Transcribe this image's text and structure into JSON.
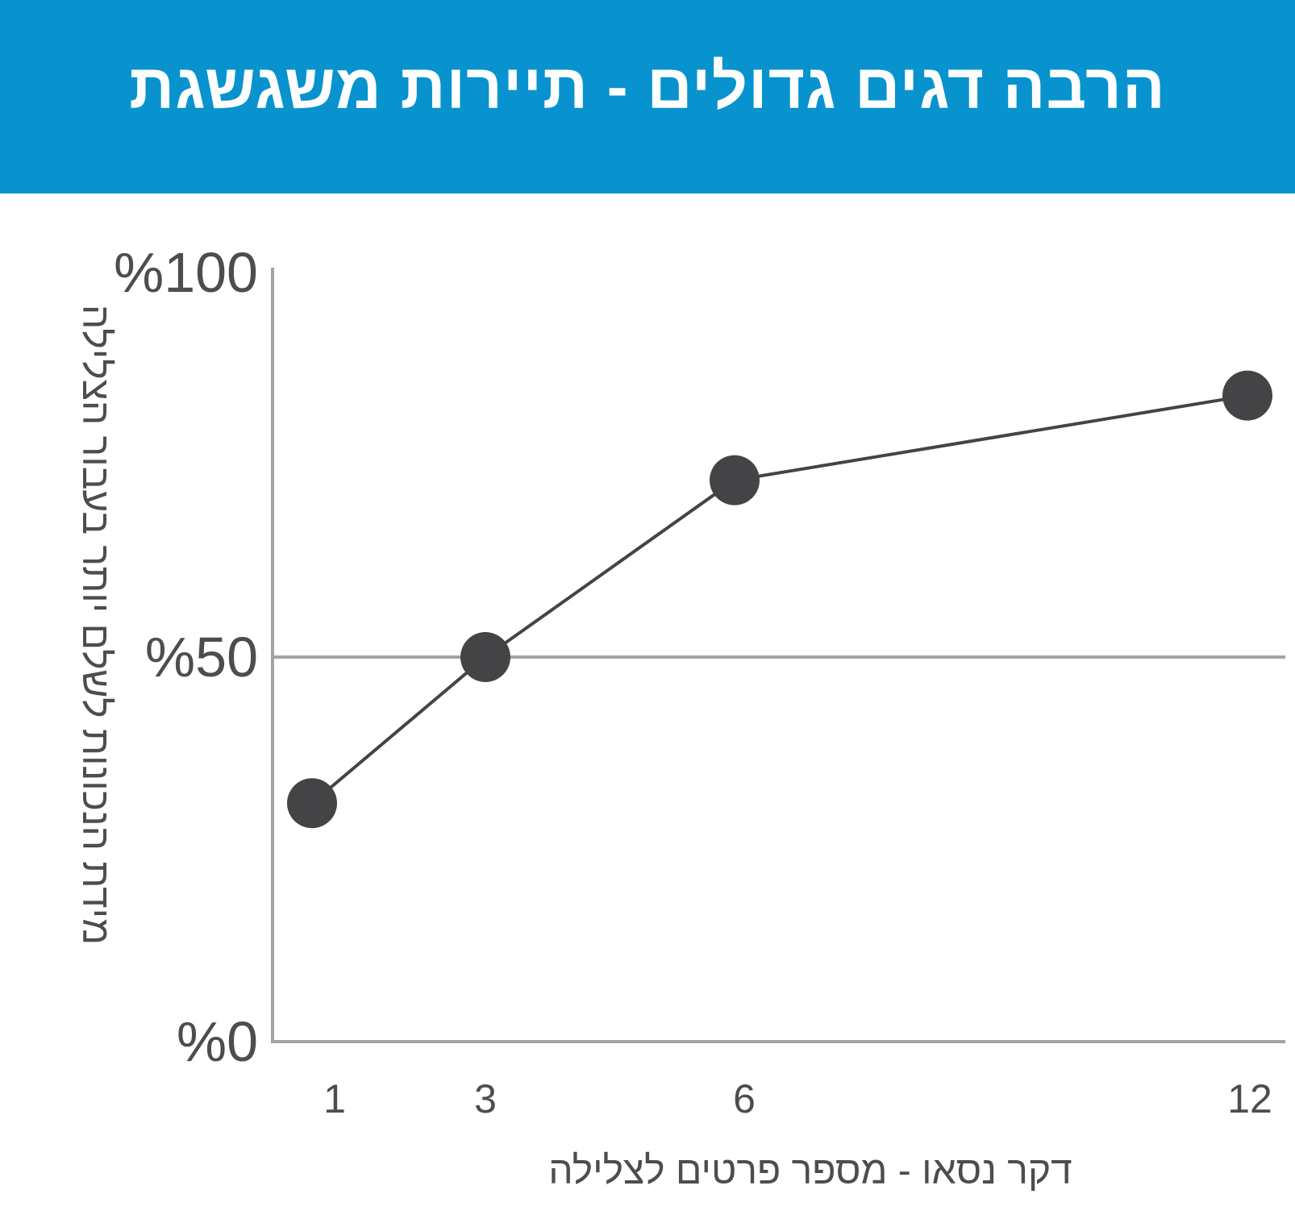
{
  "header": {
    "title": "הרבה דגים גדולים - תיירות משגשגת"
  },
  "colors": {
    "header_bg": "#0893cf",
    "header_text": "#ffffff",
    "axis": "#a3a3a3",
    "line": "#444446",
    "marker": "#444446",
    "text": "#4d4d4f"
  },
  "chart_data": {
    "type": "line",
    "title": "הרבה דגים גדולים - תיירות משגשגת",
    "xlabel": "דקר נסאו - מספר פרטים לצלילה",
    "ylabel": "מידת הנכונות לשלם יותר בעבור הצלילה",
    "x": [
      1,
      3,
      6,
      12
    ],
    "x_tick_labels": [
      "1",
      "3",
      "6",
      "12"
    ],
    "values": [
      31,
      50,
      73,
      84
    ],
    "ylim": [
      0,
      100
    ],
    "y_ticks": [
      0,
      50,
      100
    ],
    "y_tick_labels": [
      "%0",
      "%50",
      "%100"
    ],
    "gridlines": [
      50
    ],
    "grid": false,
    "legend": "none"
  }
}
